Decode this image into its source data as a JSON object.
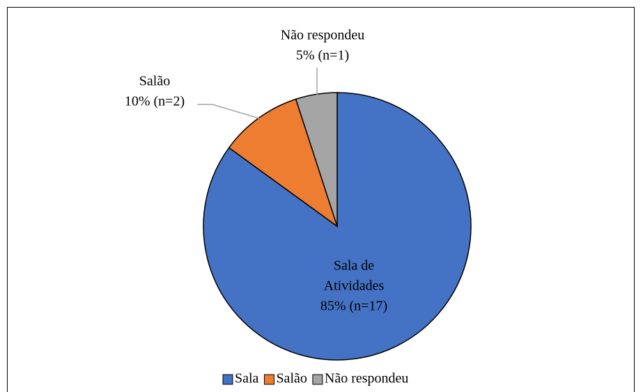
{
  "chart_data": {
    "type": "pie",
    "categories": [
      "Sala",
      "Salão",
      "Não respondeu"
    ],
    "values": [
      85,
      10,
      5
    ],
    "value_labels": [
      "85% (n=17)",
      "10% (n=2)",
      "5% (n=1)"
    ],
    "slice_labels": [
      [
        "Sala de",
        "Atividades"
      ],
      [
        "Salão"
      ],
      [
        "Não respondeu"
      ]
    ],
    "colors": [
      "#4472c4",
      "#ed7d31",
      "#a5a5a5"
    ],
    "legend": "bottom"
  }
}
